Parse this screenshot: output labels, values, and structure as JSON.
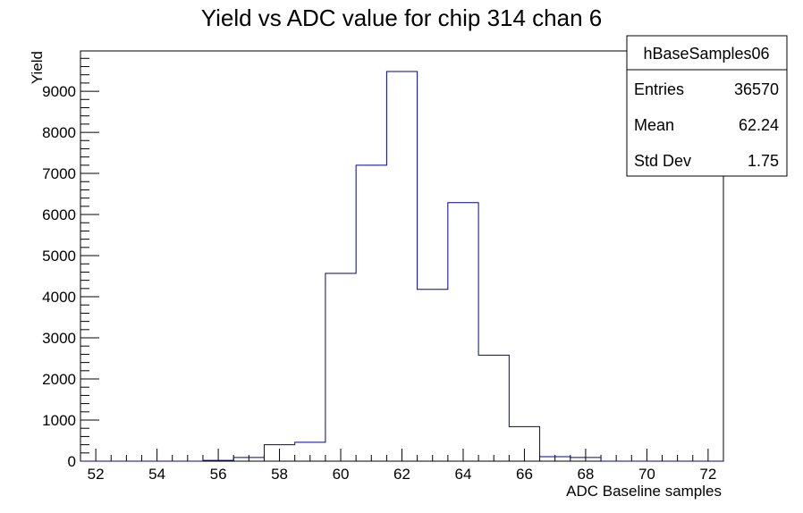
{
  "chart_data": {
    "type": "bar",
    "title": "Yield vs ADC value for chip 314 chan 6",
    "xlabel": "ADC Baseline samples",
    "ylabel": "Yield",
    "xlim": [
      51.5,
      72.5
    ],
    "ylim": [
      0,
      9980
    ],
    "x_ticks": [
      52,
      54,
      56,
      58,
      60,
      62,
      64,
      66,
      68,
      70,
      72
    ],
    "y_ticks": [
      0,
      1000,
      2000,
      3000,
      4000,
      5000,
      6000,
      7000,
      8000,
      9000
    ],
    "bin_edges": [
      51.5,
      52.5,
      53.5,
      54.5,
      55.5,
      56.5,
      57.5,
      58.5,
      59.5,
      60.5,
      61.5,
      62.5,
      63.5,
      64.5,
      65.5,
      66.5,
      67.5,
      68.5,
      69.5,
      70.5,
      71.5,
      72.5
    ],
    "values": [
      0,
      0,
      0,
      0,
      20,
      90,
      400,
      460,
      4570,
      7200,
      9480,
      4180,
      6290,
      2580,
      840,
      110,
      90,
      0,
      0,
      0,
      0
    ],
    "line_color": "#000099",
    "grid": false,
    "legend_placement": "top-right",
    "stats": {
      "name": "hBaseSamples06",
      "rows": [
        {
          "label": "Entries",
          "value": "36570"
        },
        {
          "label": "Mean",
          "value": "62.24"
        },
        {
          "label": "Std Dev",
          "value": "1.75"
        }
      ]
    }
  }
}
